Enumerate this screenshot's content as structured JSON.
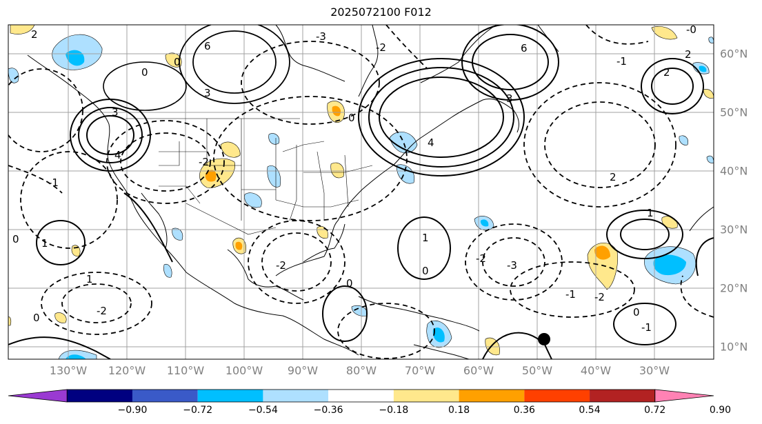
{
  "title": "2025072100 F012",
  "lon_labels": [
    "130°W",
    "120°W",
    "110°W",
    "100°W",
    "90°W",
    "80°W",
    "70°W",
    "60°W",
    "50°W",
    "40°W",
    "30°W"
  ],
  "lat_labels": [
    "60°N",
    "50°N",
    "40°N",
    "30°N",
    "20°N",
    "10°N"
  ],
  "colorbar": {
    "ticks": [
      "−0.90",
      "−0.72",
      "−0.54",
      "−0.36",
      "−0.18",
      "0.18",
      "0.36",
      "0.54",
      "0.72",
      "0.90"
    ],
    "colors": [
      "#9a3ad2",
      "#000080",
      "#3a5ac8",
      "#00bfff",
      "#aee0ff",
      "#ffffff",
      "#ffe88c",
      "#ffa000",
      "#ff4000",
      "#b22222",
      "#ff82b4"
    ]
  },
  "contour_labels": [
    {
      "text": "2"
    },
    {
      "text": "0"
    },
    {
      "text": "3"
    },
    {
      "text": "4"
    },
    {
      "text": "6"
    },
    {
      "text": "3"
    },
    {
      "text": "0"
    },
    {
      "text": "-2"
    },
    {
      "text": "-1"
    },
    {
      "text": "-2"
    },
    {
      "text": "0"
    },
    {
      "text": "6"
    },
    {
      "text": "4"
    },
    {
      "text": "3"
    },
    {
      "text": "-3"
    },
    {
      "text": "0"
    },
    {
      "text": "-2"
    },
    {
      "text": "2"
    },
    {
      "text": "2"
    },
    {
      "text": "-0"
    },
    {
      "text": "2"
    },
    {
      "text": "-1"
    },
    {
      "text": "1"
    },
    {
      "text": "-2"
    },
    {
      "text": "-3"
    },
    {
      "text": "-1"
    },
    {
      "text": "1"
    },
    {
      "text": "-2"
    },
    {
      "text": "0"
    },
    {
      "text": "-2"
    },
    {
      "text": "1"
    },
    {
      "text": "0"
    },
    {
      "text": "1"
    },
    {
      "text": "-1"
    },
    {
      "text": "0"
    },
    {
      "text": "0"
    }
  ]
}
